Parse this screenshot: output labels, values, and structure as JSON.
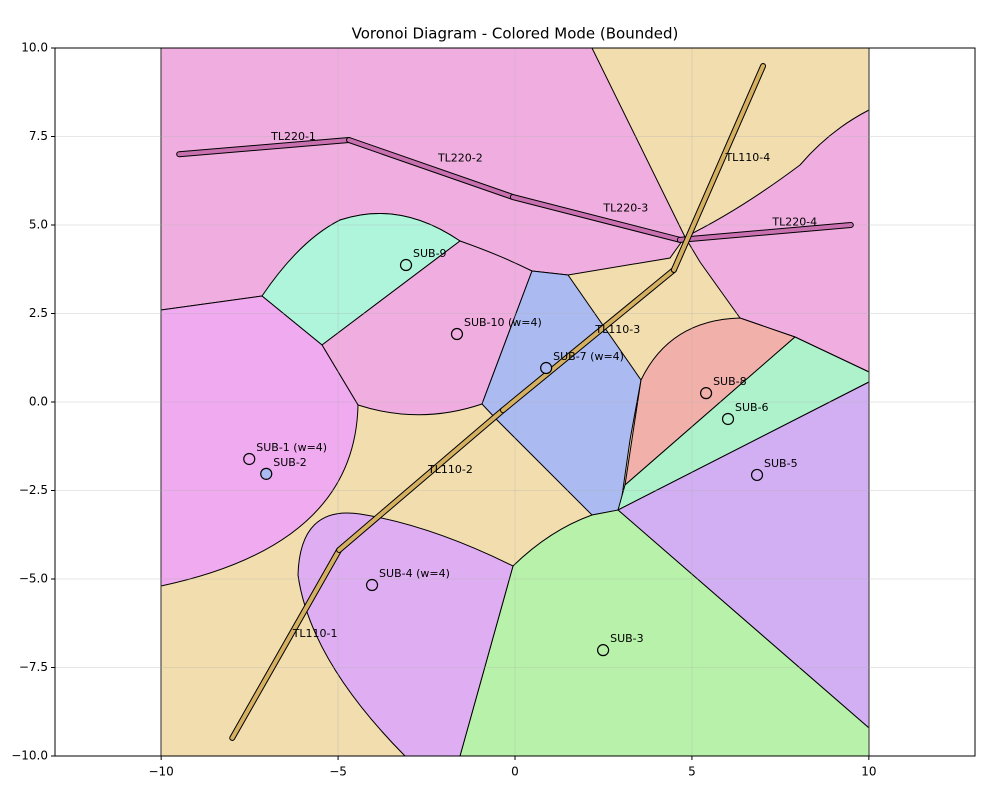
{
  "chart_data": {
    "type": "voronoi",
    "title": "Voronoi Diagram - Colored Mode (Bounded)",
    "xlim": [
      -13,
      13
    ],
    "ylim": [
      -10,
      10
    ],
    "xticks": [
      {
        "value": -10,
        "label": "−10"
      },
      {
        "value": -5,
        "label": "−5"
      },
      0,
      5,
      10
    ],
    "yticks": [
      {
        "value": -10,
        "label": "−10.0"
      },
      {
        "value": -7.5,
        "label": "−7.5"
      },
      {
        "value": -5,
        "label": "−5.0"
      },
      {
        "value": -2.5,
        "label": "−2.5"
      },
      {
        "value": 0,
        "label": "0.0"
      },
      {
        "value": 2.5,
        "label": "2.5"
      },
      {
        "value": 5,
        "label": "5.0"
      },
      {
        "value": 7.5,
        "label": "7.5"
      },
      {
        "value": 10,
        "label": "10.0"
      }
    ],
    "grid": true,
    "substations": [
      {
        "name": "SUB-1 (w=4)",
        "x": -7.51,
        "y": -1.61,
        "color": "#f0aaf0"
      },
      {
        "name": "SUB-2",
        "x": -7.03,
        "y": -2.03,
        "color": "#abbbf2"
      },
      {
        "name": "SUB-3",
        "x": 2.49,
        "y": -7.01,
        "color": "#b8f2aa"
      },
      {
        "name": "SUB-4 (w=4)",
        "x": -4.04,
        "y": -5.17,
        "color": "#dfaef2"
      },
      {
        "name": "SUB-5",
        "x": 6.84,
        "y": -2.06,
        "color": "#d2aef2"
      },
      {
        "name": "SUB-6",
        "x": 6.02,
        "y": -0.48,
        "color": "#aef2cc"
      },
      {
        "name": "SUB-7 (w=4)",
        "x": 0.88,
        "y": 0.96,
        "color": "#abbbf2"
      },
      {
        "name": "SUB-8",
        "x": 5.4,
        "y": 0.25,
        "color": "#f2b0aa"
      },
      {
        "name": "SUB-9",
        "x": -3.08,
        "y": 3.87,
        "color": "#aef5dc"
      },
      {
        "name": "SUB-10 (w=4)",
        "x": -1.64,
        "y": 1.92,
        "color": "#f0aee0"
      }
    ],
    "lines": [
      {
        "name": "TL220-1",
        "color": "#c870b0",
        "x": [
          -9.49,
          -4.69
        ],
        "y": [
          7.0,
          7.4
        ]
      },
      {
        "name": "TL220-2",
        "color": "#c870b0",
        "x": [
          -4.69,
          -0.06
        ],
        "y": [
          7.4,
          5.79
        ]
      },
      {
        "name": "TL220-3",
        "color": "#c870b0",
        "x": [
          -0.06,
          4.66
        ],
        "y": [
          5.79,
          4.58
        ]
      },
      {
        "name": "TL220-4",
        "color": "#c870b0",
        "x": [
          4.66,
          9.49
        ],
        "y": [
          4.58,
          5.0
        ]
      },
      {
        "name": "TL110-1",
        "color": "#d4b060",
        "x": [
          -7.99,
          -4.97
        ],
        "y": [
          -9.49,
          -4.18
        ]
      },
      {
        "name": "TL110-2",
        "color": "#d4b060",
        "x": [
          -4.97,
          -0.34
        ],
        "y": [
          -4.18,
          -0.23
        ]
      },
      {
        "name": "TL110-3",
        "color": "#d4b060",
        "x": [
          -0.34,
          4.49
        ],
        "y": [
          -0.23,
          3.73
        ]
      },
      {
        "name": "TL110-4",
        "color": "#d4b060",
        "x": [
          4.49,
          7.01
        ],
        "y": [
          3.73,
          9.49
        ]
      }
    ]
  }
}
